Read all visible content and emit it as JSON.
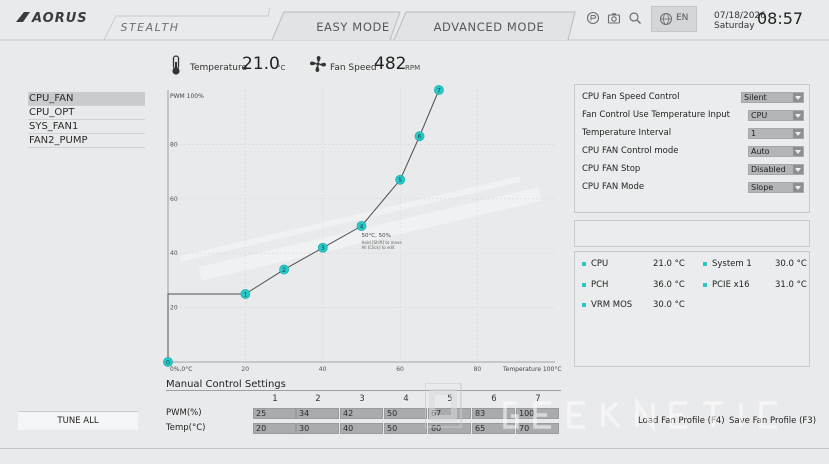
{
  "header": {
    "brand": "AORUS",
    "tabs": [
      {
        "label": "STEALTH"
      },
      {
        "label": "EASY MODE"
      },
      {
        "label": "ADVANCED MODE"
      }
    ],
    "language": "EN",
    "date": "07/18/2026",
    "weekday": "Saturday",
    "time": "08:57"
  },
  "readout": {
    "temperature_label": "Temperature",
    "temperature_value": "21.0",
    "temperature_unit": "°C",
    "fan_speed_label": "Fan Speed",
    "fan_speed_value": "482",
    "fan_speed_unit": "RPM"
  },
  "fans": [
    {
      "label": "CPU_FAN",
      "selected": true
    },
    {
      "label": "CPU_OPT",
      "selected": false
    },
    {
      "label": "SYS_FAN1",
      "selected": false
    },
    {
      "label": "FAN2_PUMP",
      "selected": false
    }
  ],
  "chart_data": {
    "type": "line",
    "ylabel": "PWM 100%",
    "xlabel": "Temperature 100°C",
    "origin_label": "0%,0°C",
    "xlim": [
      0,
      100
    ],
    "ylim": [
      0,
      100
    ],
    "x_ticks": [
      20,
      40,
      60,
      80
    ],
    "y_ticks": [
      20,
      40,
      60,
      80
    ],
    "series": [
      {
        "points": [
          {
            "label": "0",
            "x": 0,
            "y": 0
          },
          {
            "label": "1",
            "x": 20,
            "y": 25
          },
          {
            "label": "2",
            "x": 30,
            "y": 34
          },
          {
            "label": "3",
            "x": 40,
            "y": 42
          },
          {
            "label": "4",
            "x": 50,
            "y": 50
          },
          {
            "label": "5",
            "x": 60,
            "y": 67
          },
          {
            "label": "6",
            "x": 65,
            "y": 83
          },
          {
            "label": "7",
            "x": 70,
            "y": 100
          }
        ]
      }
    ],
    "hover_label": "50°C, 50%",
    "hint_line1": "Hold [Shift] to move",
    "hint_line2": "All [Click] to edit"
  },
  "manual": {
    "title": "Manual Control Settings",
    "columns": [
      "1",
      "2",
      "3",
      "4",
      "5",
      "6",
      "7"
    ],
    "pwm_label": "PWM(%)",
    "temp_label": "Temp(°C)",
    "pwm": [
      "25",
      "34",
      "42",
      "50",
      "67",
      "83",
      "100"
    ],
    "temp": [
      "20",
      "30",
      "40",
      "50",
      "60",
      "65",
      "70"
    ]
  },
  "settings": [
    {
      "label": "CPU Fan Speed Control",
      "value": "Silent"
    },
    {
      "label": "Fan Control Use Temperature Input",
      "value": "CPU"
    },
    {
      "label": "Temperature Interval",
      "value": "1"
    },
    {
      "label": "CPU FAN Control mode",
      "value": "Auto"
    },
    {
      "label": "CPU FAN Stop",
      "value": "Disabled"
    },
    {
      "label": "CPU FAN Mode",
      "value": "Slope"
    }
  ],
  "temperatures": [
    {
      "label": "CPU",
      "value": "21.0 °C"
    },
    {
      "label": "System 1",
      "value": "30.0 °C"
    },
    {
      "label": "PCH",
      "value": "36.0 °C"
    },
    {
      "label": "PCIE x16",
      "value": "31.0 °C"
    },
    {
      "label": "VRM MOS",
      "value": "30.0 °C"
    }
  ],
  "buttons": {
    "tune_all": "TUNE ALL",
    "load_profile": "Load Fan Profile (F4)",
    "save_profile": "Save Fan Profile (F3)"
  },
  "colors": {
    "accent": "#29c9c9",
    "background": "#e9eaeb"
  }
}
